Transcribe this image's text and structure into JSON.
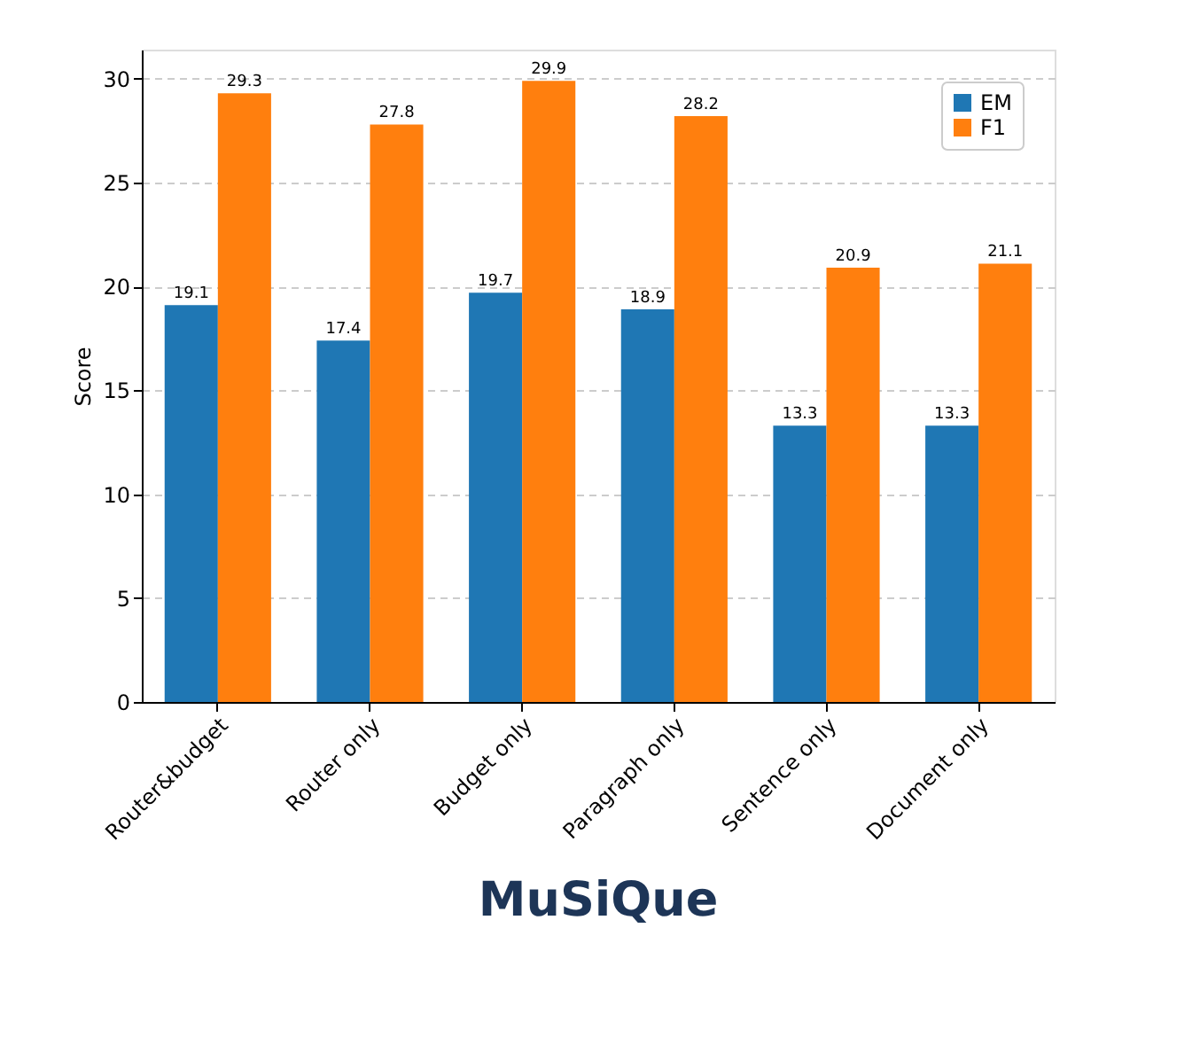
{
  "chart_data": {
    "type": "bar",
    "title": "MuSiQue",
    "ylabel": "Score",
    "categories": [
      "Router&budget",
      "Router only",
      "Budget only",
      "Paragraph only",
      "Sentence only",
      "Document only"
    ],
    "series": [
      {
        "name": "EM",
        "color": "#1f77b4",
        "values": [
          19.1,
          17.4,
          19.7,
          18.9,
          13.3,
          13.3
        ]
      },
      {
        "name": "F1",
        "color": "#ff7f0e",
        "values": [
          29.3,
          27.8,
          29.9,
          28.2,
          20.9,
          21.1
        ]
      }
    ],
    "ylim": [
      0,
      31.4
    ],
    "yticks": [
      0,
      5,
      10,
      15,
      20,
      25,
      30
    ],
    "grid": "y",
    "legend": "top right",
    "data_labels": true
  }
}
